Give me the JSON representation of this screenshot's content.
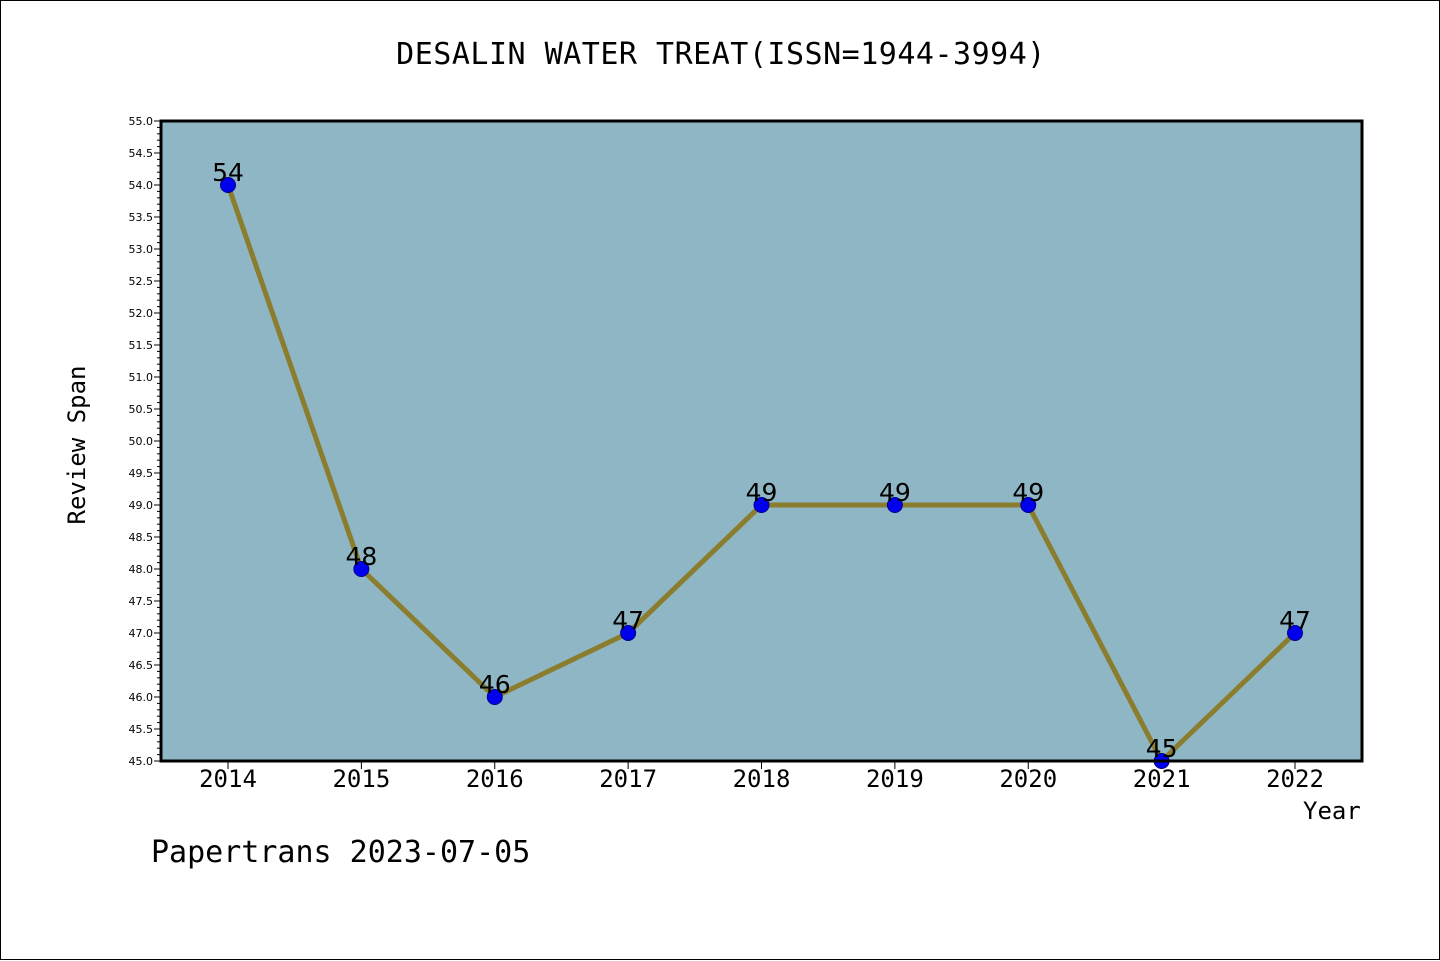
{
  "chart_data": {
    "type": "line",
    "title": "DESALIN WATER TREAT(ISSN=1944-3994)",
    "xlabel": "Year",
    "ylabel": "Review Span",
    "categories": [
      "2014",
      "2015",
      "2016",
      "2017",
      "2018",
      "2019",
      "2020",
      "2021",
      "2022"
    ],
    "values": [
      54,
      48,
      46,
      47,
      49,
      49,
      49,
      45,
      47
    ],
    "data_labels": [
      "54",
      "48",
      "46",
      "47",
      "49",
      "49",
      "49",
      "45",
      "47"
    ],
    "ylim": [
      45.0,
      55.0
    ],
    "ytick_step": 0.5,
    "grid": false,
    "colors": {
      "plot_background": "#8fb6c4",
      "line": "#8b7d2e",
      "marker": "#0000ee",
      "axis": "#000000"
    }
  },
  "footer": "Papertrans 2023-07-05"
}
